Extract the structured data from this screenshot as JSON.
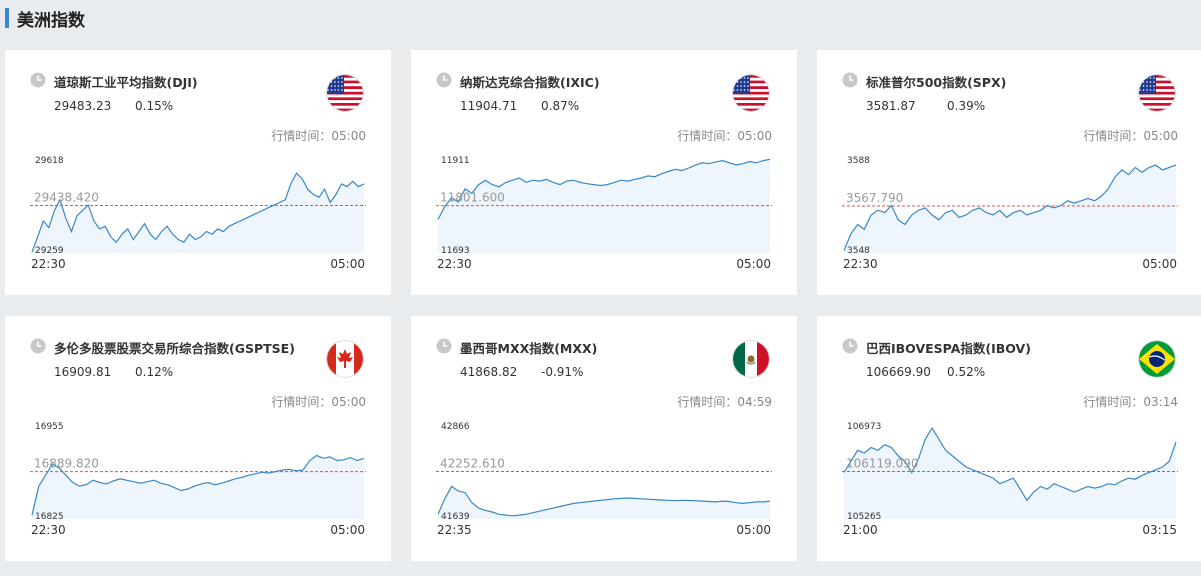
{
  "section": {
    "title": "美洲指数"
  },
  "cards": [
    {
      "name": "道琼斯工业平均指数(DJI)",
      "price": "29483.23",
      "change": "0.15%",
      "time_label": "行情时间：05:00",
      "flag": "us-flag-icon",
      "chart_data": {
        "type": "line",
        "y_max_label": "29618",
        "y_min_label": "29259",
        "reference_label": "29438.420",
        "reference": 29438.42,
        "ylim": [
          29259,
          29618
        ],
        "x_start": "22:30",
        "x_end": "05:00",
        "values": [
          29262,
          29320,
          29380,
          29355,
          29420,
          29460,
          29390,
          29340,
          29400,
          29420,
          29440,
          29380,
          29350,
          29360,
          29320,
          29300,
          29330,
          29350,
          29310,
          29340,
          29370,
          29330,
          29310,
          29340,
          29360,
          29330,
          29310,
          29300,
          29330,
          29310,
          29320,
          29340,
          29330,
          29350,
          29340,
          29360,
          29370,
          29380,
          29390,
          29400,
          29410,
          29420,
          29430,
          29440,
          29450,
          29460,
          29520,
          29560,
          29540,
          29500,
          29480,
          29470,
          29500,
          29450,
          29480,
          29520,
          29510,
          29530,
          29510,
          29520
        ]
      }
    },
    {
      "name": "纳斯达克综合指数(IXIC)",
      "price": "11904.71",
      "change": "0.87%",
      "time_label": "行情时间：05:00",
      "flag": "us-flag-icon",
      "chart_data": {
        "type": "line",
        "y_max_label": "11911",
        "y_min_label": "11693",
        "reference_label": "11801.600",
        "reference": 11801.6,
        "ylim": [
          11693,
          11911
        ],
        "x_start": "22:30",
        "x_end": "05:00",
        "values": [
          11770,
          11800,
          11820,
          11810,
          11840,
          11830,
          11850,
          11860,
          11850,
          11845,
          11855,
          11860,
          11865,
          11855,
          11860,
          11858,
          11862,
          11855,
          11850,
          11858,
          11860,
          11855,
          11852,
          11850,
          11848,
          11850,
          11855,
          11860,
          11858,
          11862,
          11865,
          11870,
          11868,
          11875,
          11880,
          11885,
          11882,
          11888,
          11895,
          11900,
          11898,
          11902,
          11905,
          11900,
          11895,
          11898,
          11903,
          11900,
          11905,
          11908
        ]
      }
    },
    {
      "name": "标准普尔500指数(SPX)",
      "price": "3581.87",
      "change": "0.39%",
      "time_label": "行情时间：05:00",
      "flag": "us-flag-icon",
      "chart_data": {
        "type": "line",
        "y_max_label": "3588",
        "y_min_label": "3548",
        "reference_label": "3567.790",
        "reference": 3567.79,
        "ylim": [
          3548,
          3588
        ],
        "x_start": "22:30",
        "x_end": "05:00",
        "values": [
          3549,
          3556,
          3560,
          3558,
          3564,
          3566,
          3565,
          3568,
          3562,
          3560,
          3564,
          3566,
          3567,
          3564,
          3562,
          3565,
          3566,
          3563,
          3564,
          3566,
          3567,
          3565,
          3564,
          3566,
          3563,
          3565,
          3566,
          3564,
          3565,
          3566,
          3568,
          3567,
          3568,
          3570,
          3569,
          3570,
          3571,
          3570,
          3572,
          3575,
          3580,
          3583,
          3581,
          3584,
          3582,
          3584,
          3585,
          3583,
          3584,
          3585
        ]
      }
    },
    {
      "name": "多伦多股票股票交易所综合指数(GSPTSE)",
      "price": "16909.81",
      "change": "0.12%",
      "time_label": "行情时间：05:00",
      "flag": "canada-flag-icon",
      "chart_data": {
        "type": "line",
        "y_max_label": "16955",
        "y_min_label": "16825",
        "reference_label": "16889.820",
        "reference": 16889.82,
        "ylim": [
          16825,
          16955
        ],
        "x_start": "22:30",
        "x_end": "05:00",
        "values": [
          16830,
          16870,
          16885,
          16900,
          16895,
          16885,
          16875,
          16870,
          16872,
          16878,
          16875,
          16873,
          16877,
          16880,
          16878,
          16876,
          16874,
          16876,
          16878,
          16874,
          16872,
          16868,
          16864,
          16866,
          16870,
          16873,
          16875,
          16872,
          16874,
          16877,
          16880,
          16882,
          16885,
          16887,
          16889,
          16888,
          16890,
          16892,
          16893,
          16891,
          16892,
          16905,
          16912,
          16908,
          16910,
          16905,
          16906,
          16909,
          16905,
          16908
        ]
      }
    },
    {
      "name": "墨西哥MXX指数(MXX)",
      "price": "41868.82",
      "change": "-0.91%",
      "time_label": "行情时间：04:59",
      "flag": "mexico-flag-icon",
      "chart_data": {
        "type": "line",
        "y_max_label": "42866",
        "y_min_label": "41639",
        "reference_label": "42252.610",
        "reference": 42252.61,
        "ylim": [
          41639,
          42866
        ],
        "x_start": "22:35",
        "x_end": "05:00",
        "values": [
          41700,
          41900,
          42060,
          42000,
          41980,
          41850,
          41780,
          41750,
          41730,
          41700,
          41690,
          41680,
          41690,
          41700,
          41720,
          41740,
          41760,
          41780,
          41800,
          41820,
          41840,
          41850,
          41860,
          41870,
          41880,
          41890,
          41900,
          41905,
          41910,
          41905,
          41900,
          41895,
          41890,
          41885,
          41880,
          41875,
          41880,
          41878,
          41875,
          41870,
          41865,
          41860,
          41870,
          41865,
          41850,
          41840,
          41850,
          41860,
          41860,
          41870
        ]
      }
    },
    {
      "name": "巴西IBOVESPA指数(IBOV)",
      "price": "106669.90",
      "change": "0.52%",
      "time_label": "行情时间：03:14",
      "flag": "brazil-flag-icon",
      "chart_data": {
        "type": "line",
        "y_max_label": "106973",
        "y_min_label": "105265",
        "reference_label": "106119.090",
        "reference": 106119.09,
        "ylim": [
          105265,
          106973
        ],
        "x_start": "21:00",
        "x_end": "03:15",
        "values": [
          106100,
          106300,
          106500,
          106450,
          106550,
          106500,
          106600,
          106550,
          106400,
          106300,
          106100,
          106350,
          106700,
          106900,
          106700,
          106500,
          106400,
          106300,
          106200,
          106150,
          106100,
          106050,
          106000,
          105900,
          105950,
          106000,
          105800,
          105600,
          105750,
          105850,
          105800,
          105900,
          105850,
          105800,
          105750,
          105800,
          105850,
          105820,
          105850,
          105900,
          105880,
          105950,
          106000,
          105980,
          106050,
          106100,
          106150,
          106200,
          106300,
          106650
        ]
      }
    }
  ]
}
